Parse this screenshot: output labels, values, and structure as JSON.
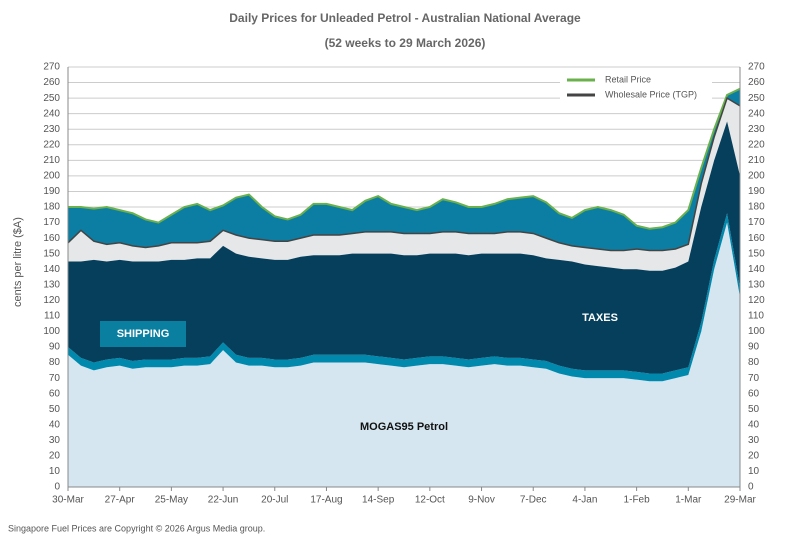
{
  "chart_data": {
    "type": "stacked-area",
    "title": "Daily  Prices for Unleaded  Petrol  - Australian  National  Average",
    "subtitle": "(52 weeks to 29 March 2026)",
    "y_label": "cents per litre ($A)",
    "source": "Singapore  Fuel Prices are  Copyright © 2026 Argus Media  group.",
    "annotations": [
      "SHIPPING",
      "TAXES",
      "MOGAS95 Petrol"
    ],
    "categories": [
      "30-Mar",
      null,
      null,
      null,
      "27-Apr",
      null,
      null,
      null,
      "25-May",
      null,
      null,
      null,
      "22-Jun",
      null,
      null,
      null,
      "20-Jul",
      null,
      null,
      null,
      "17-Aug",
      null,
      null,
      null,
      "14-Sep",
      null,
      null,
      null,
      "12-Oct",
      null,
      null,
      null,
      "9-Nov",
      null,
      null,
      null,
      "7-Dec",
      null,
      null,
      null,
      "4-Jan",
      null,
      null,
      null,
      "1-Feb",
      null,
      null,
      null,
      "1-Mar",
      null,
      null,
      null,
      "29-Mar"
    ],
    "ylim": [
      0,
      270
    ],
    "yticks": [
      0,
      10,
      20,
      30,
      40,
      50,
      60,
      70,
      80,
      90,
      100,
      110,
      120,
      130,
      140,
      150,
      160,
      170,
      180,
      190,
      200,
      210,
      220,
      230,
      240,
      250,
      260,
      270
    ],
    "y2lim": [
      0,
      270
    ],
    "y2ticks": [
      0,
      10,
      20,
      30,
      40,
      50,
      60,
      70,
      80,
      90,
      100,
      110,
      120,
      130,
      140,
      150,
      160,
      170,
      180,
      190,
      200,
      210,
      220,
      230,
      240,
      250,
      260,
      270
    ],
    "grid": true,
    "legend": "top-right",
    "stacked_series": [
      {
        "name": "MOGAS95 Petrol",
        "color": "#d5e6f1",
        "values": [
          85,
          78,
          75,
          77,
          78,
          76,
          77,
          77,
          77,
          78,
          78,
          79,
          88,
          80,
          78,
          78,
          77,
          77,
          78,
          80,
          80,
          80,
          80,
          80,
          79,
          78,
          77,
          78,
          79,
          79,
          78,
          77,
          78,
          79,
          78,
          78,
          77,
          76,
          73,
          71,
          70,
          70,
          70,
          70,
          69,
          68,
          68,
          70,
          72,
          100,
          140,
          170,
          122
        ]
      },
      {
        "name": "SHIPPING",
        "color": "#0089ad",
        "values": [
          5,
          5,
          5,
          5,
          5,
          5,
          5,
          5,
          5,
          5,
          5,
          5,
          5,
          5,
          5,
          5,
          5,
          5,
          5,
          5,
          5,
          5,
          5,
          5,
          5,
          5,
          5,
          5,
          5,
          5,
          5,
          5,
          5,
          5,
          5,
          5,
          5,
          5,
          5,
          5,
          5,
          5,
          5,
          5,
          5,
          5,
          5,
          5,
          5,
          6,
          6,
          6,
          6
        ]
      },
      {
        "name": "TAXES",
        "color": "#063f5c",
        "values": [
          55,
          62,
          66,
          63,
          63,
          64,
          63,
          63,
          64,
          63,
          64,
          63,
          62,
          65,
          65,
          64,
          64,
          64,
          65,
          64,
          64,
          64,
          65,
          65,
          66,
          67,
          67,
          66,
          66,
          66,
          67,
          67,
          67,
          66,
          67,
          67,
          67,
          66,
          68,
          69,
          68,
          67,
          66,
          65,
          66,
          66,
          66,
          66,
          68,
          74,
          64,
          59,
          72
        ]
      }
    ],
    "series": [
      {
        "name": "Retail Price",
        "color": "#6ab04c",
        "fill": "#0c7ea4",
        "values": [
          180,
          180,
          179,
          180,
          178,
          176,
          172,
          170,
          175,
          180,
          182,
          178,
          181,
          186,
          188,
          180,
          174,
          172,
          175,
          182,
          182,
          180,
          178,
          184,
          187,
          182,
          180,
          178,
          180,
          185,
          183,
          180,
          180,
          182,
          185,
          186,
          187,
          183,
          176,
          173,
          178,
          180,
          178,
          175,
          168,
          166,
          167,
          170,
          178,
          205,
          230,
          252,
          256
        ]
      },
      {
        "name": "Wholesale Price (TGP)",
        "color": "#444444",
        "fill": "#e6e7e8",
        "values": [
          157,
          165,
          158,
          156,
          157,
          155,
          154,
          155,
          157,
          157,
          157,
          158,
          165,
          162,
          160,
          159,
          158,
          158,
          160,
          162,
          162,
          162,
          163,
          164,
          164,
          164,
          163,
          163,
          163,
          164,
          164,
          163,
          163,
          163,
          164,
          164,
          163,
          160,
          157,
          155,
          154,
          153,
          152,
          152,
          153,
          152,
          152,
          153,
          156,
          195,
          225,
          250,
          245
        ]
      }
    ]
  }
}
